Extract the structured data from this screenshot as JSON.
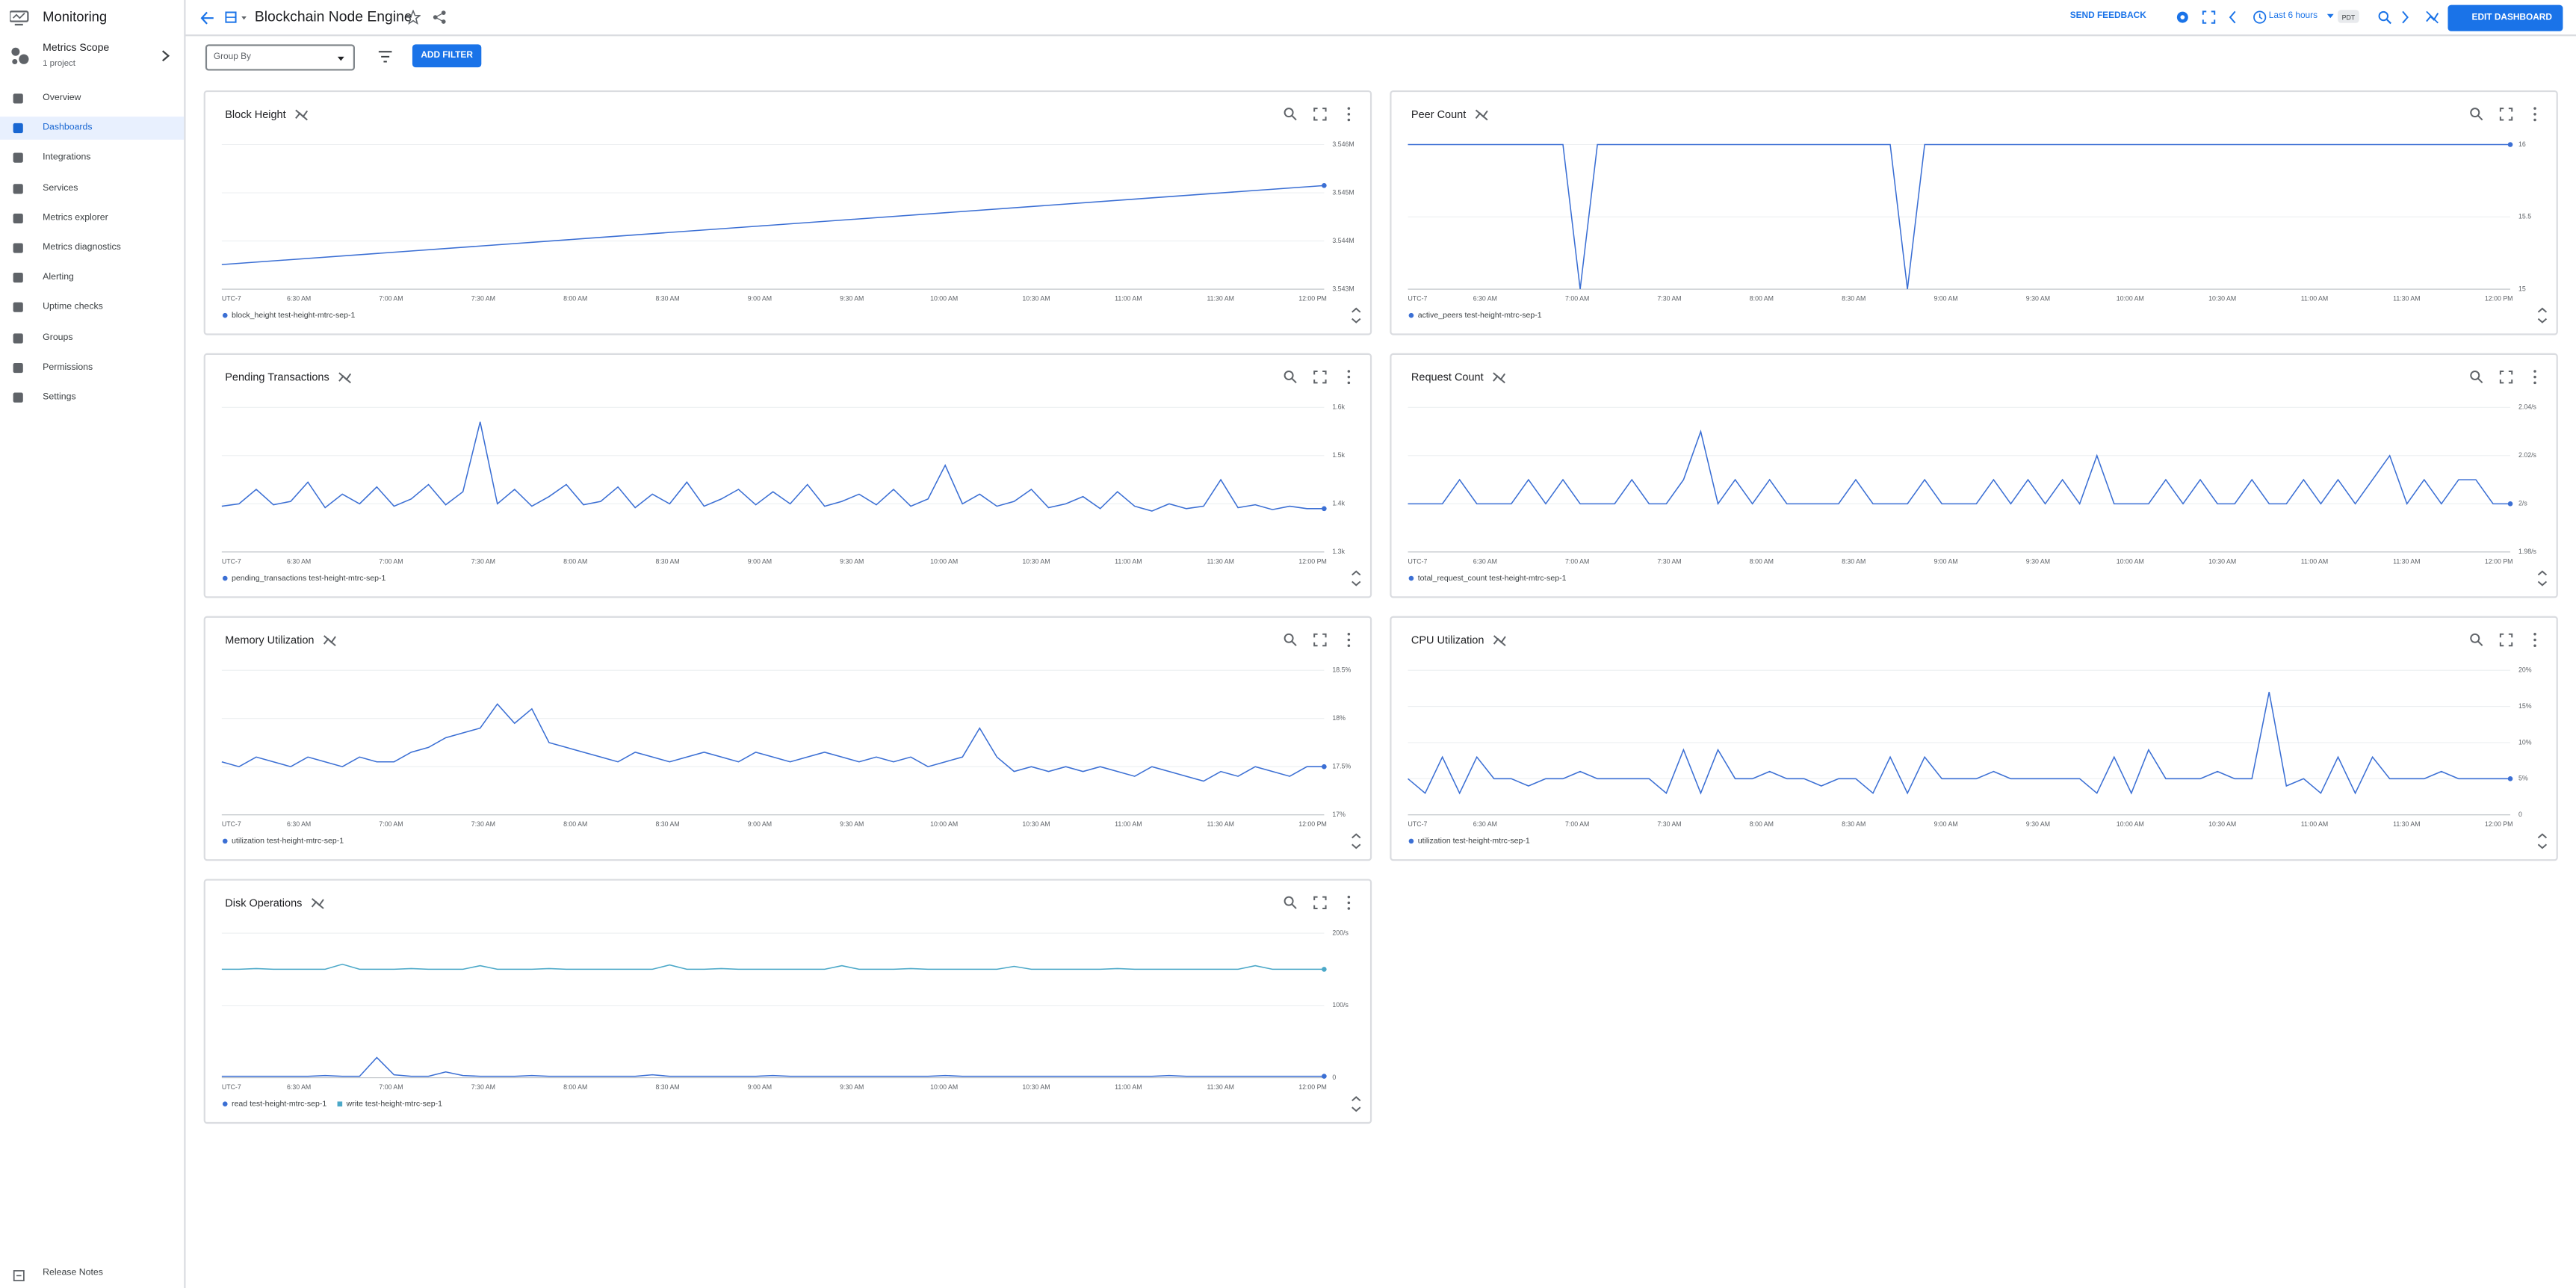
{
  "app": {
    "product": "Monitoring",
    "scope": {
      "title": "Metrics Scope",
      "subtitle": "1 project"
    },
    "nav": [
      "Overview",
      "Dashboards",
      "Integrations",
      "Services",
      "Metrics explorer",
      "Metrics diagnostics",
      "Alerting",
      "Uptime checks",
      "Groups",
      "Permissions",
      "Settings"
    ],
    "active_nav": 1,
    "release_notes": "Release Notes"
  },
  "header": {
    "title": "Blockchain Node Engine",
    "feedback": "SEND FEEDBACK",
    "time_range": "Last 6 hours",
    "timezone": "PDT",
    "edit": "EDIT DASHBOARD"
  },
  "filters": {
    "group_by": "Group By",
    "add_filter": "ADD FILTER"
  },
  "chart_data": [
    {
      "type": "line",
      "title": "Block Height",
      "grid": true,
      "x_labels": [
        "UTC-7",
        "6:30 AM",
        "7:00 AM",
        "7:30 AM",
        "8:00 AM",
        "8:30 AM",
        "9:00 AM",
        "9:30 AM",
        "10:00 AM",
        "10:30 AM",
        "11:00 AM",
        "11:30 AM",
        "12:00 PM"
      ],
      "ylim": [
        3543000,
        3546000
      ],
      "yticks": [
        {
          "value": 3546000,
          "label": "3.546M"
        },
        {
          "value": 3545000,
          "label": "3.545M"
        },
        {
          "value": 3544000,
          "label": "3.544M"
        },
        {
          "value": 3543000,
          "label": "3.543M"
        }
      ],
      "series": [
        {
          "name": "block_height test-height-mtrc-sep-1",
          "color": "#3b6fd4",
          "values": [
            3543510,
            3543783,
            3544057,
            3544330,
            3544603,
            3544877,
            3545150
          ]
        }
      ]
    },
    {
      "type": "line",
      "title": "Peer Count",
      "grid": true,
      "x_labels": [
        "UTC-7",
        "6:30 AM",
        "7:00 AM",
        "7:30 AM",
        "8:00 AM",
        "8:30 AM",
        "9:00 AM",
        "9:30 AM",
        "10:00 AM",
        "10:30 AM",
        "11:00 AM",
        "11:30 AM",
        "12:00 PM"
      ],
      "ylim": [
        15,
        16
      ],
      "yticks": [
        16,
        15.5,
        15
      ],
      "series": [
        {
          "name": "active_peers test-height-mtrc-sep-1",
          "color": "#3b6fd4",
          "values": [
            16,
            16,
            16,
            16,
            16,
            16,
            16,
            16,
            16,
            16,
            15,
            16,
            16,
            16,
            16,
            16,
            16,
            16,
            16,
            16,
            16,
            16,
            16,
            16,
            16,
            16,
            16,
            16,
            16,
            15,
            16,
            16,
            16,
            16,
            16,
            16,
            16,
            16,
            16,
            16,
            16,
            16,
            16,
            16,
            16,
            16,
            16,
            16,
            16,
            16,
            16,
            16,
            16,
            16,
            16,
            16,
            16,
            16,
            16,
            16,
            16,
            16,
            16,
            16,
            16
          ]
        }
      ]
    },
    {
      "type": "line",
      "title": "Pending Transactions",
      "grid": true,
      "x_labels": [
        "UTC-7",
        "6:30 AM",
        "7:00 AM",
        "7:30 AM",
        "8:00 AM",
        "8:30 AM",
        "9:00 AM",
        "9:30 AM",
        "10:00 AM",
        "10:30 AM",
        "11:00 AM",
        "11:30 AM",
        "12:00 PM"
      ],
      "ylim": [
        1300,
        1600
      ],
      "yticks": [
        {
          "value": 1600,
          "label": "1.6k"
        },
        {
          "value": 1500,
          "label": "1.5k"
        },
        {
          "value": 1400,
          "label": "1.4k"
        },
        {
          "value": 1300,
          "label": "1.3k"
        }
      ],
      "series": [
        {
          "name": "pending_transactions test-height-mtrc-sep-1",
          "color": "#3b6fd4",
          "values": [
            1395,
            1400,
            1430,
            1398,
            1405,
            1445,
            1392,
            1420,
            1400,
            1435,
            1395,
            1410,
            1440,
            1398,
            1425,
            1570,
            1400,
            1430,
            1395,
            1415,
            1440,
            1398,
            1405,
            1435,
            1392,
            1420,
            1400,
            1445,
            1395,
            1410,
            1430,
            1398,
            1425,
            1400,
            1440,
            1395,
            1405,
            1420,
            1398,
            1430,
            1395,
            1410,
            1480,
            1400,
            1420,
            1395,
            1405,
            1430,
            1392,
            1400,
            1415,
            1390,
            1425,
            1395,
            1385,
            1400,
            1390,
            1395,
            1450,
            1392,
            1398,
            1388,
            1395,
            1390,
            1390
          ]
        }
      ]
    },
    {
      "type": "line",
      "title": "Request Count",
      "grid": true,
      "x_labels": [
        "UTC-7",
        "6:30 AM",
        "7:00 AM",
        "7:30 AM",
        "8:00 AM",
        "8:30 AM",
        "9:00 AM",
        "9:30 AM",
        "10:00 AM",
        "10:30 AM",
        "11:00 AM",
        "11:30 AM",
        "12:00 PM"
      ],
      "ylim": [
        1.98,
        2.04
      ],
      "yticks": [
        {
          "value": 2.04,
          "label": "2.04/s"
        },
        {
          "value": 2.02,
          "label": "2.02/s"
        },
        {
          "value": 2,
          "label": "2/s"
        },
        {
          "value": 1.98,
          "label": "1.98/s"
        }
      ],
      "series": [
        {
          "name": "total_request_count test-height-mtrc-sep-1",
          "color": "#3b6fd4",
          "values": [
            2,
            2,
            2,
            2.01,
            2,
            2,
            2,
            2.01,
            2,
            2.01,
            2,
            2,
            2,
            2.01,
            2,
            2,
            2.01,
            2.03,
            2,
            2.01,
            2,
            2.01,
            2,
            2,
            2,
            2,
            2.01,
            2,
            2,
            2,
            2.01,
            2,
            2,
            2,
            2.01,
            2,
            2.01,
            2,
            2.01,
            2,
            2.02,
            2,
            2,
            2,
            2.01,
            2,
            2.01,
            2,
            2,
            2.01,
            2,
            2,
            2.01,
            2,
            2.01,
            2,
            2.01,
            2.02,
            2,
            2.01,
            2,
            2.01,
            2.01,
            2,
            2
          ]
        }
      ]
    },
    {
      "type": "line",
      "title": "Memory Utilization",
      "grid": true,
      "x_labels": [
        "UTC-7",
        "6:30 AM",
        "7:00 AM",
        "7:30 AM",
        "8:00 AM",
        "8:30 AM",
        "9:00 AM",
        "9:30 AM",
        "10:00 AM",
        "10:30 AM",
        "11:00 AM",
        "11:30 AM",
        "12:00 PM"
      ],
      "ylim": [
        17,
        18.5
      ],
      "yticks": [
        {
          "value": 18.5,
          "label": "18.5%"
        },
        {
          "value": 18,
          "label": "18%"
        },
        {
          "value": 17.5,
          "label": "17.5%"
        },
        {
          "value": 17,
          "label": "17%"
        }
      ],
      "series": [
        {
          "name": "utilization test-height-mtrc-sep-1",
          "color": "#3b6fd4",
          "values": [
            17.55,
            17.5,
            17.6,
            17.55,
            17.5,
            17.6,
            17.55,
            17.5,
            17.6,
            17.55,
            17.55,
            17.65,
            17.7,
            17.8,
            17.85,
            17.9,
            18.15,
            17.95,
            18.1,
            17.75,
            17.7,
            17.65,
            17.6,
            17.55,
            17.65,
            17.6,
            17.55,
            17.6,
            17.65,
            17.6,
            17.55,
            17.65,
            17.6,
            17.55,
            17.6,
            17.65,
            17.6,
            17.55,
            17.6,
            17.55,
            17.6,
            17.5,
            17.55,
            17.6,
            17.9,
            17.6,
            17.45,
            17.5,
            17.45,
            17.5,
            17.45,
            17.5,
            17.45,
            17.4,
            17.5,
            17.45,
            17.4,
            17.35,
            17.45,
            17.4,
            17.5,
            17.45,
            17.4,
            17.5,
            17.5
          ]
        }
      ]
    },
    {
      "type": "line",
      "title": "CPU Utilization",
      "grid": true,
      "x_labels": [
        "UTC-7",
        "6:30 AM",
        "7:00 AM",
        "7:30 AM",
        "8:00 AM",
        "8:30 AM",
        "9:00 AM",
        "9:30 AM",
        "10:00 AM",
        "10:30 AM",
        "11:00 AM",
        "11:30 AM",
        "12:00 PM"
      ],
      "ylim": [
        0,
        20
      ],
      "yticks": [
        {
          "value": 20,
          "label": "20%"
        },
        {
          "value": 15,
          "label": "15%"
        },
        {
          "value": 10,
          "label": "10%"
        },
        {
          "value": 5,
          "label": "5%"
        },
        0
      ],
      "series": [
        {
          "name": "utilization test-height-mtrc-sep-1",
          "color": "#3b6fd4",
          "values": [
            5,
            3,
            8,
            3,
            8,
            5,
            5,
            4,
            5,
            5,
            6,
            5,
            5,
            5,
            5,
            3,
            9,
            3,
            9,
            5,
            5,
            6,
            5,
            5,
            4,
            5,
            5,
            3,
            8,
            3,
            8,
            5,
            5,
            5,
            6,
            5,
            5,
            5,
            5,
            5,
            3,
            8,
            3,
            9,
            5,
            5,
            5,
            6,
            5,
            5,
            17,
            4,
            5,
            3,
            8,
            3,
            8,
            5,
            5,
            5,
            6,
            5,
            5,
            5,
            5
          ]
        }
      ]
    },
    {
      "type": "line",
      "title": "Disk Operations",
      "grid": true,
      "x_labels": [
        "UTC-7",
        "6:30 AM",
        "7:00 AM",
        "7:30 AM",
        "8:00 AM",
        "8:30 AM",
        "9:00 AM",
        "9:30 AM",
        "10:00 AM",
        "10:30 AM",
        "11:00 AM",
        "11:30 AM",
        "12:00 PM"
      ],
      "ylim": [
        0,
        200
      ],
      "yticks": [
        {
          "value": 200,
          "label": "200/s"
        },
        {
          "value": 100,
          "label": "100/s"
        },
        0
      ],
      "series": [
        {
          "name": "read test-height-mtrc-sep-1",
          "color": "#3b6fd4",
          "values": [
            2,
            2,
            2,
            2,
            2,
            2,
            3,
            2,
            2,
            28,
            4,
            2,
            2,
            8,
            3,
            2,
            2,
            2,
            3,
            2,
            2,
            2,
            2,
            2,
            2,
            4,
            2,
            2,
            2,
            2,
            2,
            2,
            3,
            2,
            2,
            2,
            2,
            2,
            2,
            2,
            2,
            2,
            3,
            2,
            2,
            2,
            2,
            2,
            2,
            2,
            2,
            2,
            2,
            2,
            2,
            3,
            2,
            2,
            2,
            2,
            2,
            2,
            2,
            2,
            2
          ]
        },
        {
          "name": "write test-height-mtrc-sep-1",
          "color": "#4ba8c8",
          "values": [
            150,
            150,
            151,
            150,
            150,
            150,
            150,
            157,
            150,
            150,
            150,
            151,
            150,
            150,
            150,
            155,
            150,
            150,
            150,
            151,
            150,
            150,
            150,
            150,
            150,
            150,
            156,
            150,
            150,
            151,
            150,
            150,
            150,
            150,
            150,
            150,
            155,
            150,
            150,
            150,
            151,
            150,
            150,
            150,
            150,
            150,
            154,
            150,
            150,
            150,
            150,
            150,
            151,
            150,
            150,
            150,
            150,
            150,
            150,
            150,
            155,
            150,
            150,
            150,
            150
          ]
        }
      ]
    }
  ]
}
